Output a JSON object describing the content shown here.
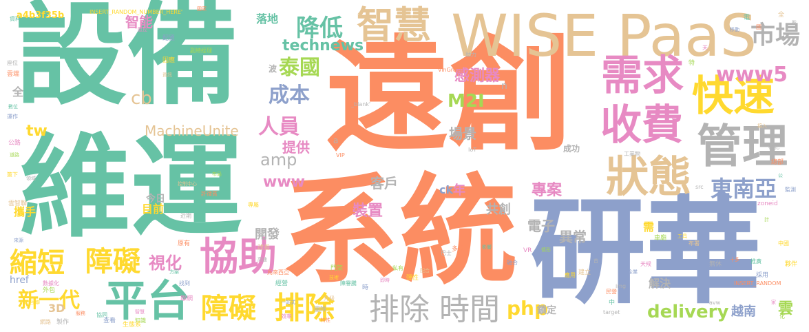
{
  "palette": {
    "orange": "#fc8d62",
    "green": "#66c2a5",
    "blue": "#8da0cb",
    "pink": "#e78ac3",
    "lime": "#a6d854",
    "yellow": "#ffd92f",
    "tan": "#e5c494",
    "gray": "#b3b3b3"
  },
  "words": {
    "yuanchuang": "遠創",
    "xitong": "系統",
    "yanhua": "研華",
    "shebei": "設備",
    "weiyun": "維運",
    "wisepaas": "WISE PaaS",
    "zhihui": "智慧",
    "shoufei": "收費",
    "kuaisu": "快速",
    "xuqiu": "需求",
    "guanli": "管理",
    "zhuangtai": "狀態",
    "shichang": "市場",
    "dongnanya": "東南亞",
    "pingtai": "平台",
    "xiezhu": "協助",
    "suoduan": "縮短",
    "zhangai1": "障礙",
    "zhangai2": "障礙",
    "paichu1": "排除",
    "paichu2": "排除",
    "shijian": "時間",
    "jiangdi": "降低",
    "taiguo": "泰國",
    "chengben": "成本",
    "renyuan": "人員",
    "www5": "www5",
    "m2i": "M2I",
    "technews": "technews",
    "machineunite": "MachineUnite",
    "amp": "amp",
    "www": "www",
    "cb": "cb",
    "tw": "tw",
    "php": "php",
    "delivery": "delivery",
    "xinyidai": "新一代",
    "shihua": "視化",
    "zhineng": "智能",
    "ganceqi": "感測器",
    "changjing": "場景",
    "tigong": "提供",
    "kehu": "客戶",
    "zhuangzhi": "裝置",
    "zhuanan": "專案",
    "dianzi": "電子",
    "yichang": "異常",
    "kaifa": "開發",
    "jiejue": "解決",
    "yuenan": "越南",
    "yun": "雲",
    "suoding": "鎖定",
    "gongchuang": "共創",
    "nian": "年",
    "ck": "ck",
    "mudi": "目前",
    "jinri": "今日",
    "xieshou": "攜手",
    "luodi": "落地",
    "a4b3f35b": "a4b3f35b",
    "insert1": "INSERT_RANDOM_NUMBER_HERE'",
    "insert2": "INSERT_RANDOM",
    "href": "href",
    "3d": "3D",
    "quan": "全",
    "xu": "需",
    "a": "a",
    "n": "n",
    "bo": "波",
    "chenggong": "成功",
    "vingroup": "VinGroup",
    "zhuli": "助力",
    "iot": "IoT",
    "vip": "VIP",
    "img": "img",
    "target": "target",
    "avw": "avw",
    "src": "src",
    "blank": "_blank'",
    "gongye": "工業物",
    "gongchang": "工業物",
    "misc": [
      "國家",
      "資料",
      "配置",
      "監控",
      "副總經理",
      "因應",
      "資訊",
      "座位",
      "雲端",
      "數位",
      "運作",
      "公路",
      "道路",
      "簽下",
      "雲智聯",
      "領域",
      "許律賓",
      "實現",
      "來源",
      "數據化",
      "外包",
      "互聯",
      "網路",
      "製作",
      "服務",
      "協同",
      "查看",
      "智慧",
      "知識",
      "生態系",
      "控制中心",
      "近期",
      "原有",
      "方案",
      "找到",
      "聯網",
      "布局",
      "專屬",
      "改善",
      "高速",
      "馬來西亞",
      "經營",
      "一站式",
      "效率",
      "門架",
      "技術",
      "升級",
      "團隊",
      "特性",
      "陳譽騰",
      "時",
      "即時",
      "私有",
      "彈性",
      "配合",
      "巴士",
      "多樣",
      "影響",
      "融合",
      "VR",
      "情形",
      "應用",
      "建立",
      "首",
      "民營",
      "中",
      "企業",
      "天候",
      "車廟",
      "工具",
      "布署",
      "無休",
      "十多",
      "推廣",
      "採用",
      "家",
      "化",
      "夥伴",
      "接入",
      "標記",
      "總部",
      "公",
      "監測",
      "zoneid",
      "計",
      "中國",
      "全",
      "影",
      "國",
      "電",
      "移動",
      "天",
      "特"
    ]
  }
}
